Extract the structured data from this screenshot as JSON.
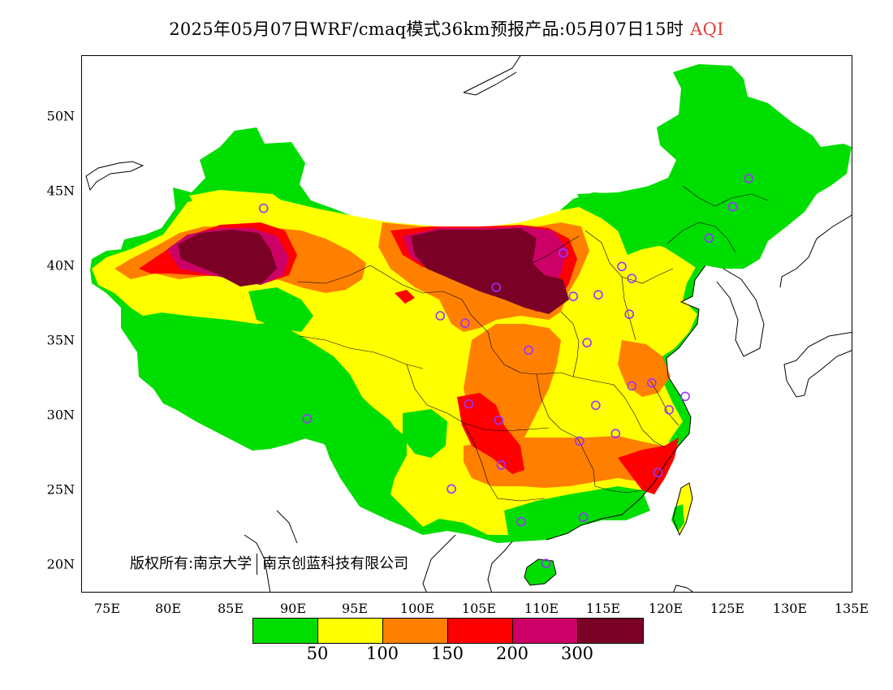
{
  "title": {
    "main": "2025年05月07日WRF/cmaq模式36km预报产品:05月07日15时",
    "product": "AQI"
  },
  "axes": {
    "y_ticks": [
      "50N",
      "45N",
      "40N",
      "35N",
      "30N",
      "25N",
      "20N"
    ],
    "x_ticks": [
      "75E",
      "80E",
      "85E",
      "90E",
      "95E",
      "100E",
      "105E",
      "110E",
      "115E",
      "120E",
      "125E",
      "130E",
      "135E"
    ]
  },
  "copyright": {
    "left": "版权所有:南京大学",
    "right": "南京创蓝科技有限公司"
  },
  "legend": {
    "colors": [
      "#00dd00",
      "#ffff00",
      "#ff8000",
      "#ff0000",
      "#cc0066",
      "#7a0026"
    ],
    "breaks": [
      "50",
      "100",
      "150",
      "200",
      "300"
    ]
  },
  "colors": {
    "good": "#00dd00",
    "moderate": "#ffff00",
    "unhealthy_sensitive": "#ff8000",
    "unhealthy": "#ff0000",
    "very_unhealthy": "#cc0066",
    "hazardous": "#7a0026",
    "station_marker": "#9933ff"
  },
  "map": {
    "lon_range": [
      73,
      135
    ],
    "lat_range": [
      18,
      54
    ],
    "stations": [
      {
        "lon": 87.6,
        "lat": 43.8
      },
      {
        "lon": 126.6,
        "lat": 45.8
      },
      {
        "lon": 125.3,
        "lat": 43.9
      },
      {
        "lon": 123.4,
        "lat": 41.8
      },
      {
        "lon": 111.7,
        "lat": 40.8
      },
      {
        "lon": 116.4,
        "lat": 39.9
      },
      {
        "lon": 117.2,
        "lat": 39.1
      },
      {
        "lon": 106.3,
        "lat": 38.5
      },
      {
        "lon": 112.5,
        "lat": 37.9
      },
      {
        "lon": 114.5,
        "lat": 38.0
      },
      {
        "lon": 101.8,
        "lat": 36.6
      },
      {
        "lon": 103.8,
        "lat": 36.1
      },
      {
        "lon": 117.0,
        "lat": 36.7
      },
      {
        "lon": 108.9,
        "lat": 34.3
      },
      {
        "lon": 113.6,
        "lat": 34.8
      },
      {
        "lon": 117.2,
        "lat": 31.9
      },
      {
        "lon": 118.8,
        "lat": 32.1
      },
      {
        "lon": 121.5,
        "lat": 31.2
      },
      {
        "lon": 120.2,
        "lat": 30.3
      },
      {
        "lon": 114.3,
        "lat": 30.6
      },
      {
        "lon": 104.1,
        "lat": 30.7
      },
      {
        "lon": 106.5,
        "lat": 29.6
      },
      {
        "lon": 91.1,
        "lat": 29.7
      },
      {
        "lon": 115.9,
        "lat": 28.7
      },
      {
        "lon": 113.0,
        "lat": 28.2
      },
      {
        "lon": 106.7,
        "lat": 26.6
      },
      {
        "lon": 119.3,
        "lat": 26.1
      },
      {
        "lon": 102.7,
        "lat": 25.0
      },
      {
        "lon": 108.3,
        "lat": 22.8
      },
      {
        "lon": 113.3,
        "lat": 23.1
      },
      {
        "lon": 110.3,
        "lat": 20.0
      }
    ]
  }
}
